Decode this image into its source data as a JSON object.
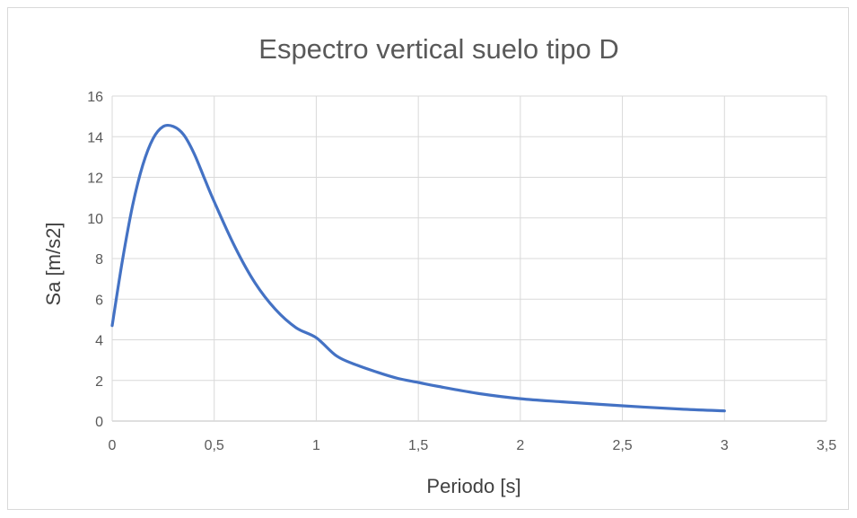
{
  "chart_data": {
    "type": "line",
    "title": "Espectro vertical suelo tipo D",
    "xlabel": "Periodo [s]",
    "ylabel": "Sa [m/s2]",
    "xlim": [
      0,
      3.5
    ],
    "ylim": [
      0,
      16
    ],
    "x_ticks": [
      "0",
      "0,5",
      "1",
      "1,5",
      "2",
      "2,5",
      "3",
      "3,5"
    ],
    "y_ticks": [
      "0",
      "2",
      "4",
      "6",
      "8",
      "10",
      "12",
      "14",
      "16"
    ],
    "grid": true,
    "legend": "none",
    "series": [
      {
        "color": "#4472c4",
        "x": [
          0,
          0.05,
          0.1,
          0.15,
          0.2,
          0.25,
          0.3,
          0.35,
          0.4,
          0.45,
          0.5,
          0.6,
          0.7,
          0.8,
          0.9,
          1.0,
          1.1,
          1.2,
          1.3,
          1.4,
          1.5,
          1.6,
          1.8,
          2.0,
          2.2,
          2.5,
          2.8,
          3.0
        ],
        "y": [
          4.7,
          7.9,
          10.6,
          12.6,
          13.9,
          14.5,
          14.5,
          14.1,
          13.2,
          12.0,
          10.8,
          8.6,
          6.8,
          5.5,
          4.6,
          4.1,
          3.2,
          2.75,
          2.4,
          2.1,
          1.9,
          1.7,
          1.35,
          1.1,
          0.95,
          0.75,
          0.58,
          0.5
        ]
      }
    ]
  }
}
